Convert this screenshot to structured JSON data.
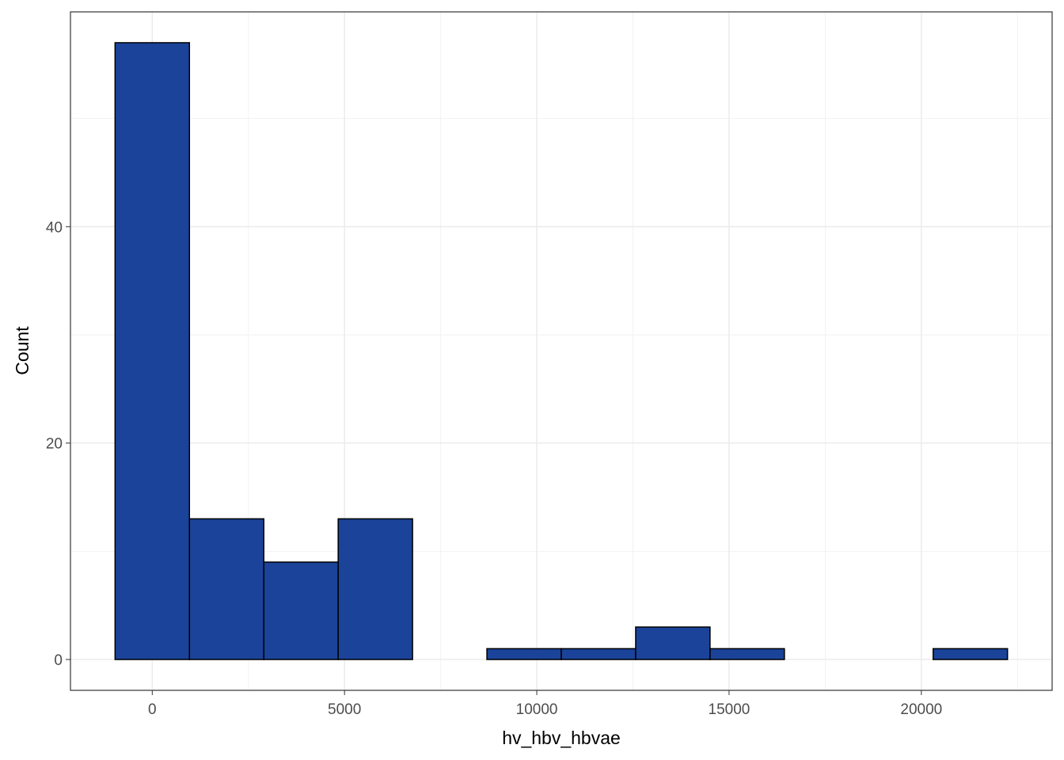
{
  "chart_data": {
    "type": "histogram",
    "x_label": "hv_hbv_hbvae",
    "y_label": "Count",
    "bins": [
      -967,
      967,
      2901,
      4835,
      6769,
      8703,
      10637,
      12571,
      14505,
      16439,
      18373,
      20307,
      22241
    ],
    "values": [
      57,
      13,
      9,
      13,
      0,
      1,
      1,
      3,
      1,
      0,
      0,
      1
    ],
    "color": "#1a4399",
    "xlim": [
      -2127,
      23401
    ],
    "ylim": [
      -2.85,
      59.85
    ],
    "xticks": [
      0,
      5000,
      10000,
      15000,
      20000
    ],
    "yticks": [
      0,
      20,
      40
    ],
    "grid": true
  }
}
